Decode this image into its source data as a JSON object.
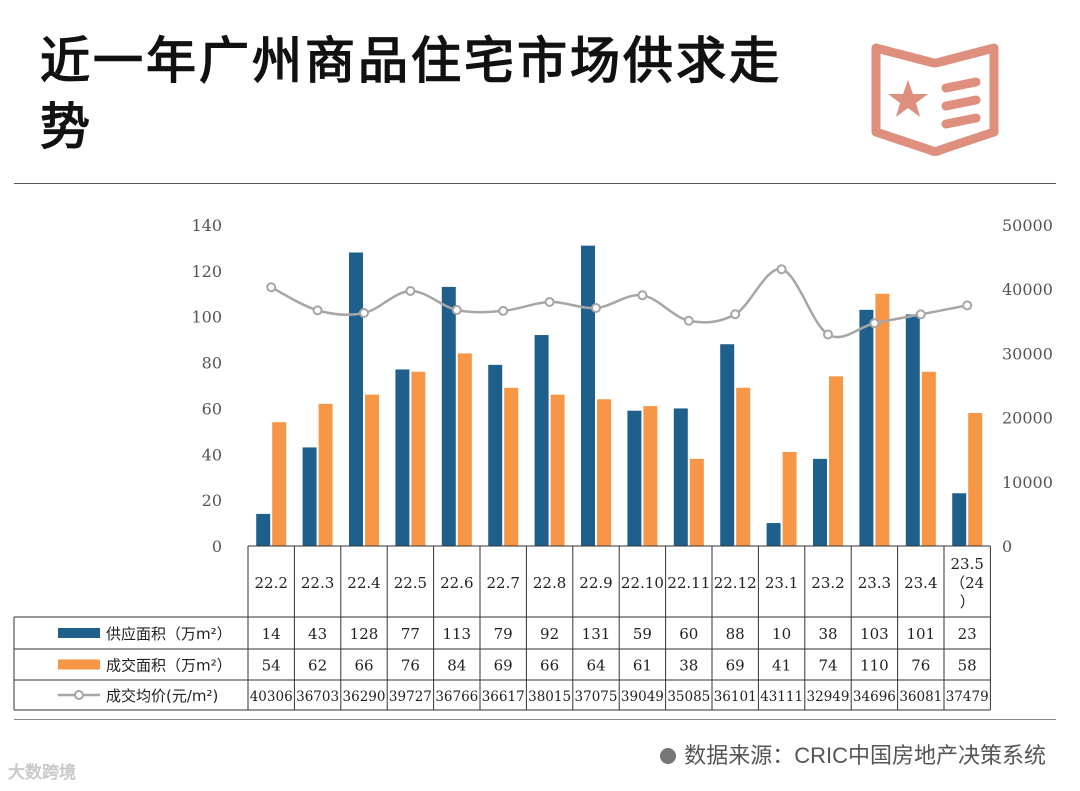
{
  "header": {
    "title": "近一年广州商品住宅市场供求走势",
    "source_text": "数据来源：CRIC中国房地产决策系统",
    "watermark": "大数跨境"
  },
  "badge": {
    "icon": "news-badge-icon",
    "color": "#df8f7d"
  },
  "colors": {
    "supply": "#1f5f8b",
    "deal": "#f79646",
    "price": "#a6a6a6"
  },
  "chart_data": {
    "type": "bar",
    "categories": [
      "22.2",
      "22.3",
      "22.4",
      "22.5",
      "22.6",
      "22.7",
      "22.8",
      "22.9",
      "22.10",
      "22.11",
      "22.12",
      "23.1",
      "23.2",
      "23.3",
      "23.4",
      "23.5（24）"
    ],
    "series": [
      {
        "name": "供应面积（万m²）",
        "type": "bar",
        "axis": "left",
        "values": [
          14,
          43,
          128,
          77,
          113,
          79,
          92,
          131,
          59,
          60,
          88,
          10,
          38,
          103,
          101,
          23
        ]
      },
      {
        "name": "成交面积（万m²）",
        "type": "bar",
        "axis": "left",
        "values": [
          54,
          62,
          66,
          76,
          84,
          69,
          66,
          64,
          61,
          38,
          69,
          41,
          74,
          110,
          76,
          58
        ]
      },
      {
        "name": "成交均价(元/m²)",
        "type": "line",
        "axis": "right",
        "values": [
          40306,
          36703,
          36290,
          39727,
          36766,
          36617,
          38015,
          37075,
          39049,
          35085,
          36101,
          43111,
          32949,
          34696,
          36081,
          37479
        ]
      }
    ],
    "ylim": [
      0,
      140
    ],
    "y_ticks": [
      0,
      20,
      40,
      60,
      80,
      100,
      120,
      140
    ],
    "y2lim": [
      0,
      50000
    ],
    "y2_ticks": [
      0,
      10000,
      20000,
      30000,
      40000,
      50000
    ],
    "grid": false,
    "legend": "data-table"
  }
}
